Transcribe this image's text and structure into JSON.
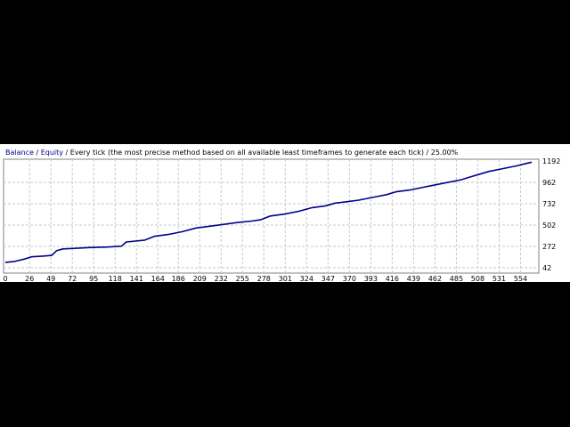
{
  "chart_data": {
    "type": "line",
    "title": "Every tick (the most precise method based on all available least timeframes to generate each tick)",
    "legend": {
      "balance": "Balance",
      "equity": "Equity",
      "separator": " / ",
      "model": "Every tick (the most precise method based on all available least timeframes to generate each tick)",
      "quality": "25.00%"
    },
    "x_ticks": [
      "0",
      "26",
      "49",
      "72",
      "95",
      "118",
      "141",
      "164",
      "186",
      "209",
      "232",
      "255",
      "278",
      "301",
      "324",
      "347",
      "370",
      "393",
      "416",
      "439",
      "462",
      "485",
      "508",
      "531",
      "554"
    ],
    "y_ticks": [
      "1192",
      "962",
      "732",
      "502",
      "272",
      "42"
    ],
    "xlim": [
      0,
      566
    ],
    "ylim": [
      42,
      1192
    ],
    "grid": true,
    "series": [
      {
        "name": "Balance",
        "color": "#00008b",
        "x": [
          0,
          10,
          22,
          28,
          40,
          50,
          55,
          62,
          72,
          90,
          110,
          125,
          130,
          135,
          150,
          160,
          175,
          190,
          205,
          220,
          235,
          250,
          265,
          275,
          285,
          300,
          315,
          330,
          345,
          355,
          365,
          380,
          395,
          400,
          410,
          420,
          435,
          450,
          460,
          475,
          490,
          500,
          510,
          520,
          530,
          540,
          550,
          560,
          566
        ],
        "y": [
          100,
          110,
          140,
          160,
          168,
          175,
          225,
          245,
          250,
          260,
          265,
          275,
          320,
          325,
          340,
          380,
          400,
          430,
          470,
          490,
          510,
          530,
          545,
          560,
          600,
          620,
          650,
          690,
          710,
          740,
          750,
          770,
          800,
          810,
          830,
          860,
          880,
          910,
          930,
          960,
          990,
          1020,
          1050,
          1080,
          1100,
          1120,
          1140,
          1165,
          1180
        ]
      }
    ]
  }
}
